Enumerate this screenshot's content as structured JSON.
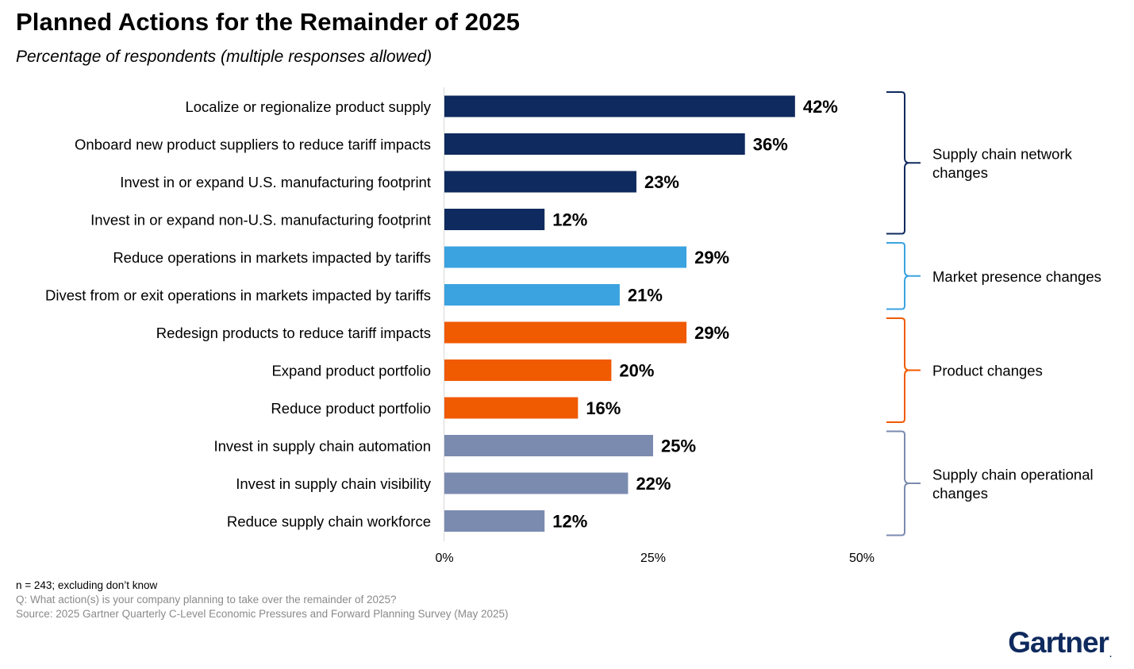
{
  "chart_data": {
    "type": "bar",
    "orientation": "horizontal",
    "title": "Planned Actions for the Remainder of 2025",
    "subtitle": "Percentage of respondents (multiple responses allowed)",
    "categories": [
      "Localize or regionalize product supply",
      "Onboard new product suppliers to reduce tariff impacts",
      "Invest in or expand U.S. manufacturing footprint",
      "Invest in or expand non-U.S. manufacturing footprint",
      "Reduce operations in markets impacted by tariffs",
      "Divest from or exit operations in markets impacted by tariffs",
      "Redesign products to reduce tariff impacts",
      "Expand product portfolio",
      "Reduce product portfolio",
      "Invest in supply chain automation",
      "Invest in supply chain visibility",
      "Reduce supply chain workforce"
    ],
    "values": [
      42,
      36,
      23,
      12,
      29,
      21,
      29,
      20,
      16,
      25,
      22,
      12
    ],
    "value_labels": [
      "42%",
      "36%",
      "23%",
      "12%",
      "29%",
      "21%",
      "29%",
      "20%",
      "16%",
      "25%",
      "22%",
      "12%"
    ],
    "xlim": [
      0,
      50
    ],
    "xticks": [
      0,
      25,
      50
    ],
    "xtick_labels": [
      "0%",
      "25%",
      "50%"
    ],
    "groups": [
      {
        "name_lines": [
          "Supply chain network",
          "changes"
        ],
        "start": 0,
        "end": 3,
        "color": "#0f2a5e"
      },
      {
        "name_lines": [
          "Market presence changes"
        ],
        "start": 4,
        "end": 5,
        "color": "#3aa3e0"
      },
      {
        "name_lines": [
          "Product changes"
        ],
        "start": 6,
        "end": 8,
        "color": "#f05a00"
      },
      {
        "name_lines": [
          "Supply chain operational",
          "changes"
        ],
        "start": 9,
        "end": 11,
        "color": "#7b8bb0"
      }
    ]
  },
  "footnotes": {
    "sample": "n = 243; excluding don’t know",
    "question": "Q: What action(s) is your company planning to take over the remainder of 2025?",
    "source": "Source: 2025 Gartner Quarterly C-Level Economic Pressures and Forward Planning Survey (May 2025)"
  },
  "logo": {
    "text": "Gartner",
    "mark": "."
  }
}
